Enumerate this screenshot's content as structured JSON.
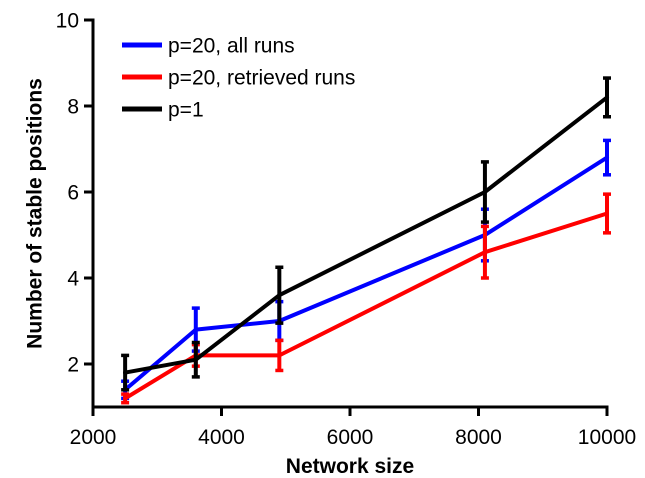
{
  "chart_data": {
    "type": "line",
    "title": "",
    "xlabel": "Network size",
    "ylabel": "Number of stable positions",
    "xlim": [
      2000,
      10000
    ],
    "ylim": [
      1,
      10
    ],
    "x_ticks": [
      2000,
      4000,
      6000,
      8000,
      10000
    ],
    "y_ticks": [
      2,
      4,
      6,
      8,
      10
    ],
    "grid": false,
    "legend_position": "top-left",
    "x": [
      2500,
      3600,
      4900,
      8100,
      10000
    ],
    "series": [
      {
        "name": "p=20, all runs",
        "color": "#0000ff",
        "values": [
          1.4,
          2.8,
          3.0,
          5.0,
          6.8
        ],
        "error": [
          0.2,
          0.5,
          0.45,
          0.6,
          0.4
        ]
      },
      {
        "name": "p=20, retrieved runs",
        "color": "#ff0000",
        "values": [
          1.2,
          2.2,
          2.2,
          4.6,
          5.5
        ],
        "error": [
          0.1,
          0.25,
          0.35,
          0.6,
          0.45
        ]
      },
      {
        "name": "p=1",
        "color": "#000000",
        "values": [
          1.8,
          2.1,
          3.6,
          6.0,
          8.2
        ],
        "error": [
          0.4,
          0.4,
          0.65,
          0.7,
          0.45
        ]
      }
    ]
  }
}
